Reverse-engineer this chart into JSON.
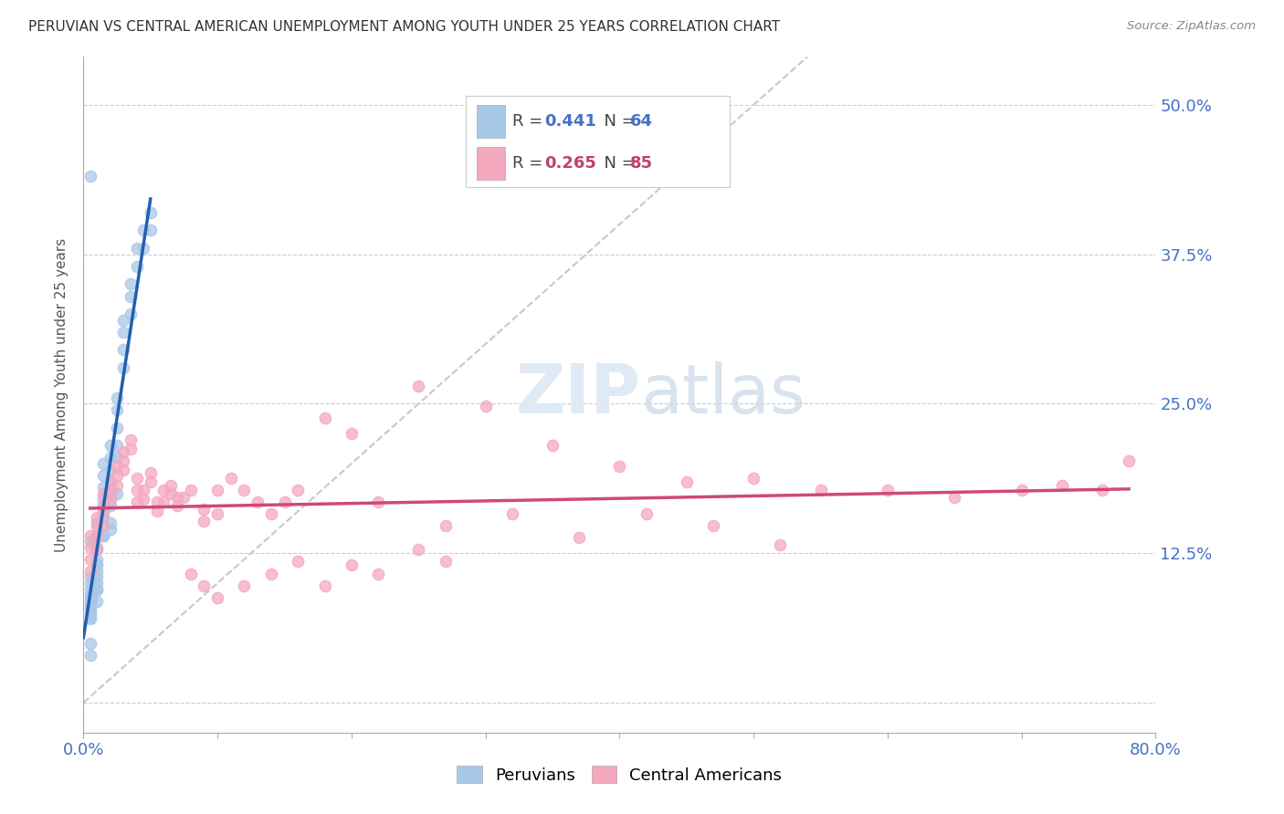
{
  "title": "PERUVIAN VS CENTRAL AMERICAN UNEMPLOYMENT AMONG YOUTH UNDER 25 YEARS CORRELATION CHART",
  "source": "Source: ZipAtlas.com",
  "ylabel": "Unemployment Among Youth under 25 years",
  "xlim": [
    0.0,
    0.8
  ],
  "ylim": [
    -0.025,
    0.54
  ],
  "yticks": [
    0.0,
    0.125,
    0.25,
    0.375,
    0.5
  ],
  "ytick_labels": [
    "",
    "12.5%",
    "25.0%",
    "37.5%",
    "50.0%"
  ],
  "xticks": [
    0.0,
    0.1,
    0.2,
    0.3,
    0.4,
    0.5,
    0.6,
    0.7,
    0.8
  ],
  "color_peru": "#a8c8e8",
  "color_central": "#f4a8be",
  "color_blue_text": "#4472c4",
  "color_pink_text": "#c04070",
  "trend_line_color_peru": "#2060b0",
  "trend_line_color_central": "#d04878",
  "diag_line_color": "#c8c8c8",
  "background_color": "#ffffff",
  "peru_x": [
    0.005,
    0.005,
    0.005,
    0.005,
    0.005,
    0.005,
    0.005,
    0.005,
    0.005,
    0.005,
    0.005,
    0.005,
    0.01,
    0.01,
    0.01,
    0.01,
    0.01,
    0.01,
    0.01,
    0.01,
    0.01,
    0.015,
    0.015,
    0.015,
    0.015,
    0.015,
    0.015,
    0.015,
    0.02,
    0.02,
    0.02,
    0.02,
    0.02,
    0.02,
    0.025,
    0.025,
    0.025,
    0.025,
    0.025,
    0.03,
    0.03,
    0.03,
    0.03,
    0.035,
    0.035,
    0.035,
    0.04,
    0.04,
    0.045,
    0.045,
    0.05,
    0.05,
    0.005,
    0.005,
    0.005,
    0.01,
    0.015,
    0.02,
    0.025,
    0.005,
    0.01,
    0.01,
    0.015,
    0.02
  ],
  "peru_y": [
    0.105,
    0.1,
    0.095,
    0.09,
    0.088,
    0.085,
    0.082,
    0.08,
    0.078,
    0.075,
    0.072,
    0.07,
    0.15,
    0.14,
    0.13,
    0.12,
    0.115,
    0.11,
    0.105,
    0.1,
    0.095,
    0.2,
    0.19,
    0.18,
    0.17,
    0.165,
    0.16,
    0.155,
    0.215,
    0.205,
    0.195,
    0.185,
    0.175,
    0.165,
    0.255,
    0.245,
    0.23,
    0.215,
    0.205,
    0.32,
    0.31,
    0.295,
    0.28,
    0.35,
    0.34,
    0.325,
    0.38,
    0.365,
    0.395,
    0.38,
    0.41,
    0.395,
    0.44,
    0.05,
    0.04,
    0.085,
    0.14,
    0.145,
    0.175,
    0.135,
    0.115,
    0.095,
    0.14,
    0.15
  ],
  "central_x": [
    0.005,
    0.005,
    0.005,
    0.005,
    0.01,
    0.01,
    0.01,
    0.01,
    0.015,
    0.015,
    0.015,
    0.015,
    0.02,
    0.02,
    0.02,
    0.025,
    0.025,
    0.025,
    0.03,
    0.03,
    0.03,
    0.035,
    0.035,
    0.04,
    0.04,
    0.04,
    0.045,
    0.045,
    0.05,
    0.05,
    0.055,
    0.055,
    0.06,
    0.06,
    0.065,
    0.065,
    0.07,
    0.07,
    0.075,
    0.08,
    0.09,
    0.09,
    0.1,
    0.1,
    0.11,
    0.12,
    0.13,
    0.14,
    0.15,
    0.16,
    0.18,
    0.2,
    0.22,
    0.25,
    0.27,
    0.3,
    0.32,
    0.35,
    0.37,
    0.4,
    0.42,
    0.45,
    0.47,
    0.5,
    0.52,
    0.55,
    0.6,
    0.65,
    0.7,
    0.73,
    0.76,
    0.78,
    0.08,
    0.09,
    0.1,
    0.12,
    0.14,
    0.16,
    0.18,
    0.2,
    0.22,
    0.25,
    0.27
  ],
  "central_y": [
    0.14,
    0.13,
    0.12,
    0.11,
    0.155,
    0.148,
    0.138,
    0.128,
    0.175,
    0.165,
    0.158,
    0.148,
    0.185,
    0.178,
    0.17,
    0.198,
    0.19,
    0.182,
    0.21,
    0.202,
    0.195,
    0.22,
    0.212,
    0.168,
    0.188,
    0.178,
    0.178,
    0.17,
    0.192,
    0.185,
    0.168,
    0.16,
    0.178,
    0.168,
    0.182,
    0.175,
    0.172,
    0.165,
    0.172,
    0.178,
    0.162,
    0.152,
    0.158,
    0.178,
    0.188,
    0.178,
    0.168,
    0.158,
    0.168,
    0.178,
    0.238,
    0.225,
    0.168,
    0.265,
    0.148,
    0.248,
    0.158,
    0.215,
    0.138,
    0.198,
    0.158,
    0.185,
    0.148,
    0.188,
    0.132,
    0.178,
    0.178,
    0.172,
    0.178,
    0.182,
    0.178,
    0.202,
    0.108,
    0.098,
    0.088,
    0.098,
    0.108,
    0.118,
    0.098,
    0.115,
    0.108,
    0.128,
    0.118
  ]
}
